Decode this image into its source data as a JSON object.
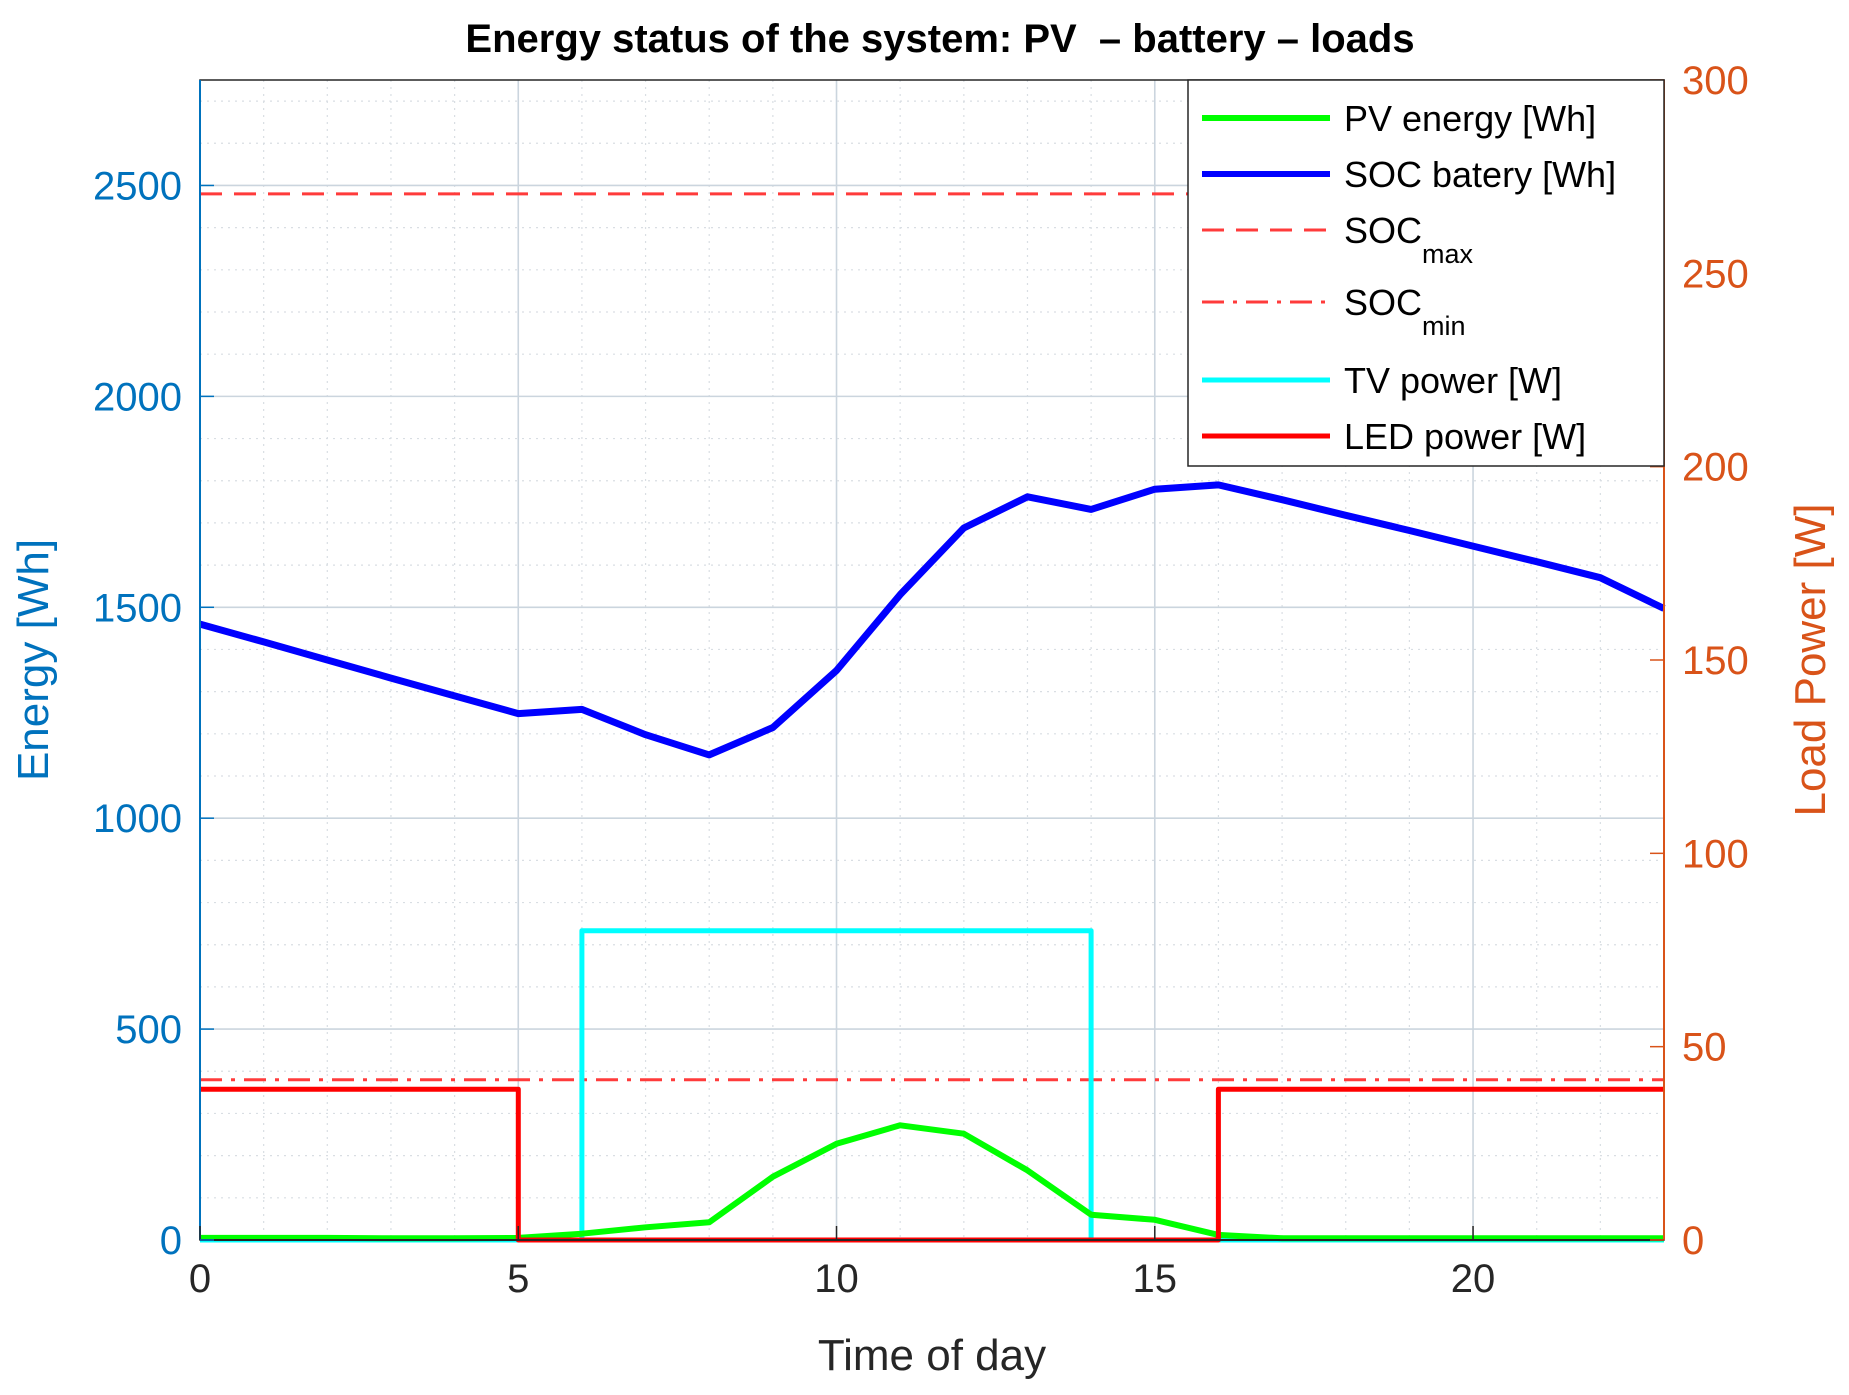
{
  "colors": {
    "left_axis": "#0072BD",
    "right_axis": "#D95319",
    "pv": "#00FF00",
    "soc": "#0000FF",
    "soc_limits": "#FF3B3B",
    "tv": "#00FFFF",
    "led": "#FF0000",
    "grid": "#D9E3EC",
    "axis_box": "#262626"
  },
  "chart_data": {
    "type": "line",
    "title": "Energy status of the system: PV  – battery – loads",
    "xlabel": "Time of day",
    "ylabel_left": "Energy [Wh]",
    "ylabel_right": "Load Power [W]",
    "xlim": [
      0,
      23
    ],
    "ylim_left": [
      0,
      2750
    ],
    "ylim_right": [
      0,
      300
    ],
    "x_ticks": [
      0,
      5,
      10,
      15,
      20
    ],
    "y_ticks_left": [
      0,
      500,
      1000,
      1500,
      2000,
      2500
    ],
    "y_ticks_right": [
      0,
      50,
      100,
      150,
      200,
      250,
      300
    ],
    "grid": "major and minor",
    "legend_position": "top-right",
    "series": [
      {
        "id": "pv",
        "name": "PV energy [Wh]",
        "axis": "left",
        "style": "solid",
        "x": [
          0,
          1,
          2,
          3,
          4,
          5,
          6,
          7,
          8,
          9,
          10,
          11,
          12,
          13,
          14,
          15,
          16,
          17,
          18,
          19,
          20,
          21,
          22,
          23
        ],
        "y": [
          5,
          5,
          5,
          4,
          4,
          5,
          15,
          30,
          42,
          150,
          228,
          272,
          252,
          165,
          60,
          48,
          12,
          4,
          4,
          4,
          4,
          4,
          4,
          4
        ]
      },
      {
        "id": "soc",
        "name": "SOC batery [Wh]",
        "axis": "left",
        "style": "solid",
        "x": [
          0,
          1,
          2,
          3,
          4,
          5,
          6,
          7,
          8,
          9,
          10,
          11,
          12,
          13,
          14,
          15,
          16,
          17,
          18,
          19,
          20,
          21,
          22,
          23
        ],
        "y": [
          1460,
          1418,
          1375,
          1332,
          1290,
          1248,
          1258,
          1198,
          1150,
          1215,
          1350,
          1530,
          1688,
          1762,
          1732,
          1780,
          1790,
          1755,
          1718,
          1682,
          1645,
          1608,
          1570,
          1497
        ]
      },
      {
        "id": "socmax",
        "name": "SOC",
        "subscript": "max",
        "axis": "left",
        "style": "dashed",
        "x": [
          0,
          23
        ],
        "y": [
          2480,
          2480
        ]
      },
      {
        "id": "socmin",
        "name": "SOC",
        "subscript": "min",
        "axis": "left",
        "style": "dashdot",
        "x": [
          0,
          23
        ],
        "y": [
          380,
          380
        ]
      },
      {
        "id": "tv",
        "name": "TV power [W]",
        "axis": "right",
        "style": "solid",
        "x": [
          0,
          6,
          6,
          14,
          14,
          23
        ],
        "y": [
          0,
          0,
          80,
          80,
          0,
          0
        ]
      },
      {
        "id": "led",
        "name": "LED power [W]",
        "axis": "right",
        "style": "solid",
        "x": [
          0,
          5,
          5,
          16,
          16,
          23
        ],
        "y": [
          39,
          39,
          0,
          0,
          39,
          39
        ]
      }
    ]
  }
}
